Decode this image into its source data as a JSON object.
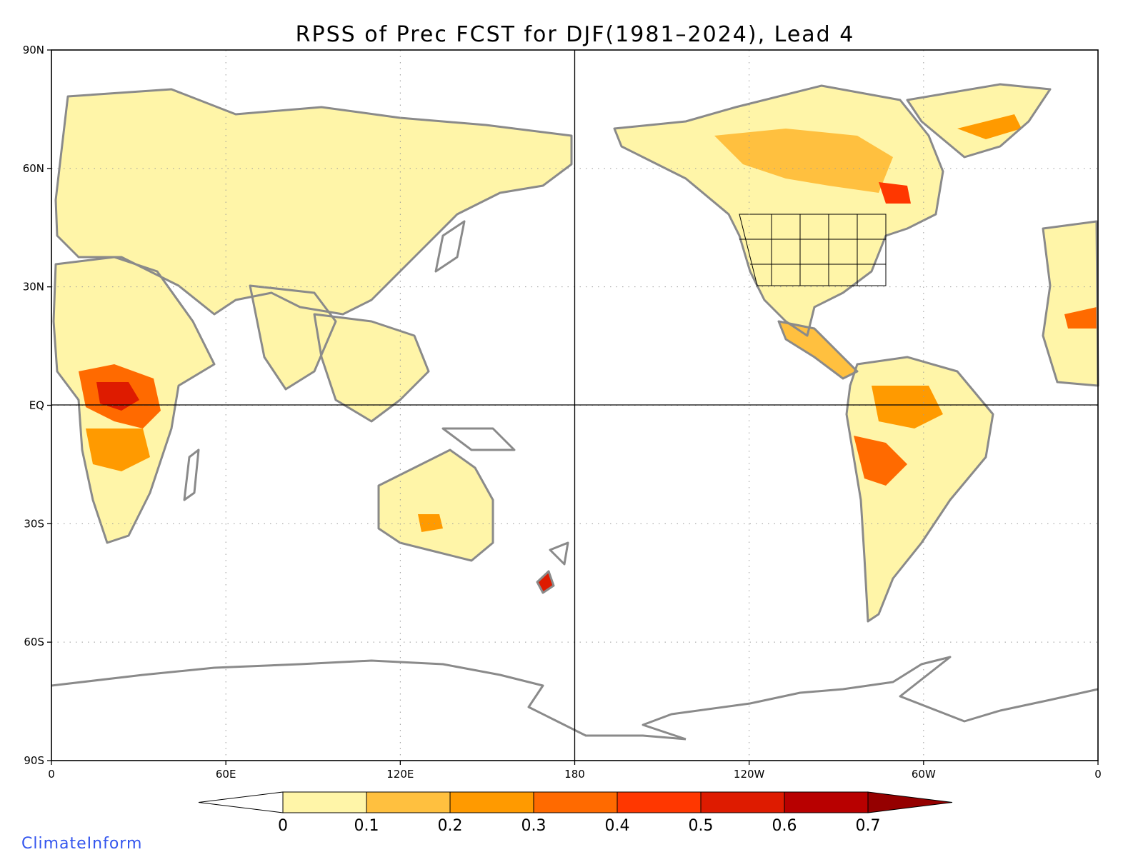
{
  "title": "RPSS of Prec FCST for DJF(1981–2024), Lead 4",
  "credit": "ClimateInform",
  "colors": {
    "credit": "#3355ee",
    "coast": "#8a8a8a",
    "frame": "#000000",
    "grid": "#9a9a9a"
  },
  "axes": {
    "x_ticks": [
      "0",
      "60E",
      "120E",
      "180",
      "120W",
      "60W",
      "0"
    ],
    "y_ticks": [
      "90N",
      "60N",
      "30N",
      "EQ",
      "30S",
      "60S",
      "90S"
    ]
  },
  "colorbar": {
    "labels": [
      "0",
      "0.1",
      "0.2",
      "0.3",
      "0.4",
      "0.5",
      "0.6",
      "0.7"
    ],
    "colors": [
      "#ffffff",
      "#fff5a8",
      "#ffc03f",
      "#ff9a00",
      "#ff6a00",
      "#ff3700",
      "#de1b00",
      "#b80000",
      "#950000"
    ]
  }
}
